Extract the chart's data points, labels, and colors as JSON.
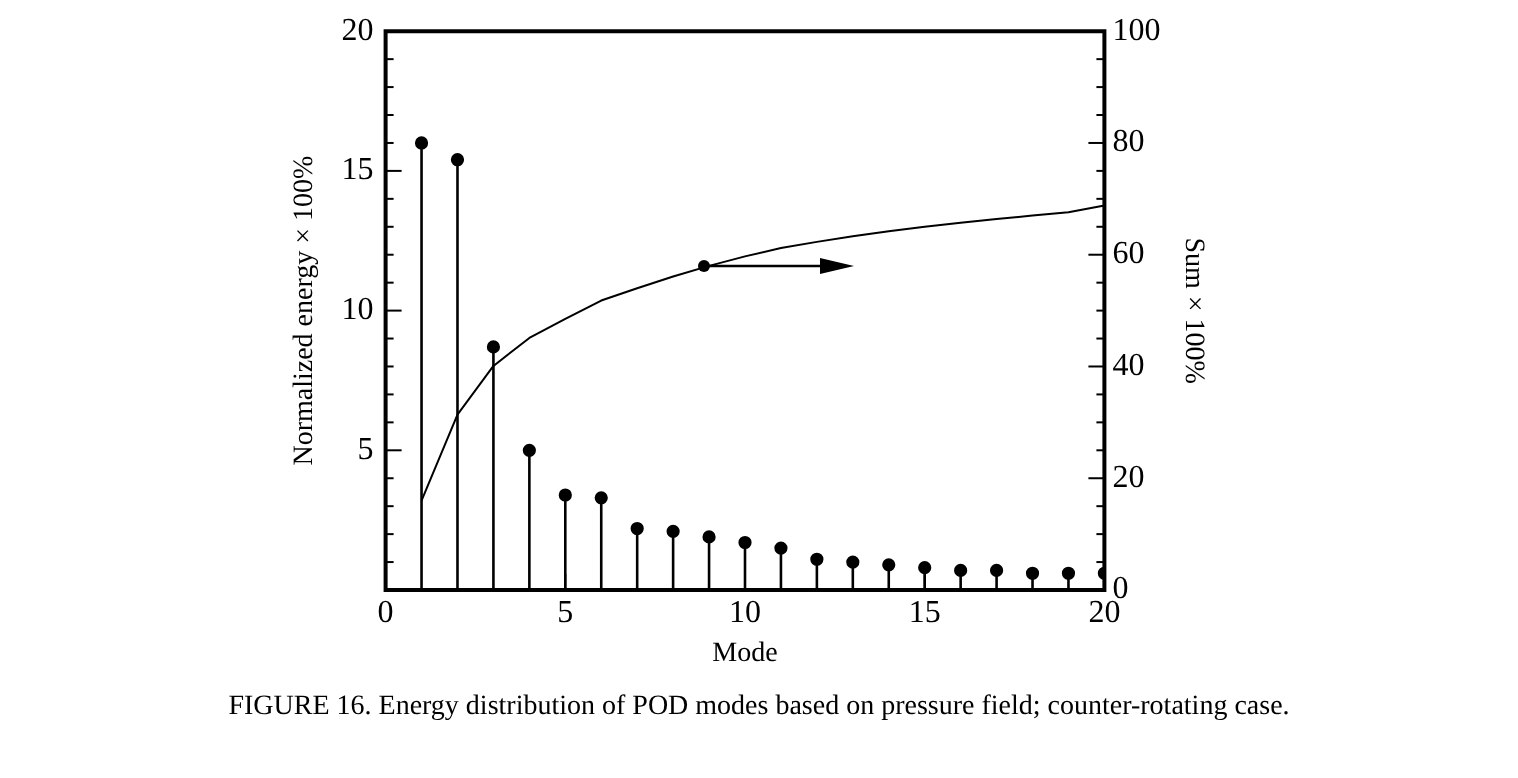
{
  "chart_data": {
    "type": "lollipop",
    "xlabel": "Mode",
    "ylabel": "Normalized energy × 100%",
    "y2label": "Sum × 100%",
    "x": [
      1,
      2,
      3,
      4,
      5,
      6,
      7,
      8,
      9,
      10,
      11,
      12,
      13,
      14,
      15,
      16,
      17,
      18,
      19,
      20
    ],
    "series": [
      {
        "type": "lollipop",
        "color": "#000000",
        "marker": "circle",
        "values": [
          16.0,
          15.4,
          8.7,
          5.0,
          3.4,
          3.3,
          2.2,
          2.1,
          1.9,
          1.7,
          1.5,
          1.1,
          1.0,
          0.9,
          0.8,
          0.7,
          0.7,
          0.6,
          0.6,
          0.6
        ]
      },
      {
        "type": "line",
        "axis": "y2",
        "color": "#000000",
        "marker": "none",
        "line_style": "solid",
        "values": [
          16.0,
          31.4,
          40.1,
          45.1,
          48.5,
          51.8,
          54.0,
          56.1,
          58.0,
          59.7,
          61.2,
          62.3,
          63.3,
          64.2,
          65.0,
          65.7,
          66.4,
          67.0,
          67.6,
          68.8
        ]
      }
    ],
    "xlim": [
      0,
      20
    ],
    "xticks": [
      0,
      5,
      10,
      15,
      20
    ],
    "ylim": [
      0,
      20
    ],
    "yticks": [
      {
        "value": 0,
        "label": null
      },
      {
        "value": 1,
        "label": null
      },
      {
        "value": 2,
        "label": null
      },
      {
        "value": 3,
        "label": null
      },
      {
        "value": 4,
        "label": null
      },
      5,
      {
        "value": 6,
        "label": null
      },
      {
        "value": 7,
        "label": null
      },
      {
        "value": 8,
        "label": null
      },
      {
        "value": 9,
        "label": null
      },
      10,
      {
        "value": 11,
        "label": null
      },
      {
        "value": 12,
        "label": null
      },
      {
        "value": 13,
        "label": null
      },
      {
        "value": 14,
        "label": null
      },
      15,
      {
        "value": 16,
        "label": null
      },
      {
        "value": 17,
        "label": null
      },
      {
        "value": 18,
        "label": null
      },
      {
        "value": 19,
        "label": null
      },
      20
    ],
    "y2lim": [
      0,
      100
    ],
    "y2ticks": [
      0,
      {
        "value": 5,
        "label": null
      },
      {
        "value": 10,
        "label": null
      },
      {
        "value": 15,
        "label": null
      },
      20,
      {
        "value": 25,
        "label": null
      },
      {
        "value": 30,
        "label": null
      },
      {
        "value": 35,
        "label": null
      },
      40,
      {
        "value": 45,
        "label": null
      },
      {
        "value": 50,
        "label": null
      },
      {
        "value": 55,
        "label": null
      },
      60,
      {
        "value": 65,
        "label": null
      },
      {
        "value": 70,
        "label": null
      },
      {
        "value": 75,
        "label": null
      },
      80,
      {
        "value": 85,
        "label": null
      },
      {
        "value": 90,
        "label": null
      },
      {
        "value": 95,
        "label": null
      },
      100
    ],
    "grid": false,
    "legend": false,
    "annotations": [
      "FIGURE 16. Energy distribution of POD modes based on pressure field; counter-rotating case."
    ]
  }
}
